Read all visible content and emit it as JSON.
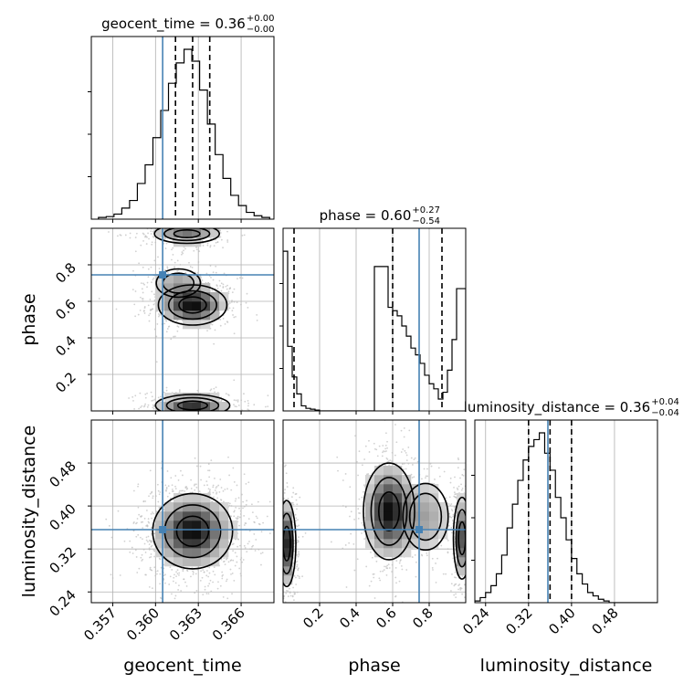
{
  "chart_data": {
    "type": "corner",
    "params": [
      "geocent_time",
      "phase",
      "luminosity_distance"
    ],
    "axis_labels": {
      "geocent_time": "geocent_time",
      "phase": "phase",
      "luminosity_distance": "luminosity_distance"
    },
    "ranges": {
      "geocent_time": [
        0.3555,
        0.3683
      ],
      "phase": [
        0.0,
        1.0
      ],
      "luminosity_distance": [
        0.22,
        0.56
      ]
    },
    "ticks": {
      "geocent_time": [
        0.357,
        0.36,
        0.363,
        0.366
      ],
      "phase": [
        0.2,
        0.4,
        0.6,
        0.8
      ],
      "luminosity_distance": [
        0.24,
        0.32,
        0.4,
        0.48
      ]
    },
    "tick_labels": {
      "geocent_time": [
        "0.357",
        "0.360",
        "0.363",
        "0.366"
      ],
      "phase": [
        "0.2",
        "0.4",
        "0.6",
        "0.8"
      ],
      "luminosity_distance": [
        "0.24",
        "0.32",
        "0.40",
        "0.48"
      ]
    },
    "titles": [
      {
        "param": "geocent_time",
        "main": "geocent_time = 0.36",
        "upper": "+0.00",
        "lower": "−0.00"
      },
      {
        "param": "phase",
        "main": "phase = 0.60",
        "upper": "+0.27",
        "lower": "−0.54"
      },
      {
        "param": "luminosity_distance",
        "main": "luminosity_distance = 0.36",
        "upper": "+0.04",
        "lower": "−0.04"
      }
    ],
    "truths": {
      "geocent_time": 0.3605,
      "phase": 0.745,
      "luminosity_distance": 0.356
    },
    "quantiles": {
      "geocent_time": [
        0.3614,
        0.3626,
        0.3638
      ],
      "phase": [
        0.06,
        0.6,
        0.87
      ],
      "luminosity_distance": [
        0.32,
        0.36,
        0.4
      ]
    },
    "histograms": {
      "geocent_time": {
        "edges_range": [
          0.356,
          0.368
        ],
        "counts": [
          0.01,
          0.015,
          0.03,
          0.065,
          0.11,
          0.21,
          0.32,
          0.48,
          0.64,
          0.8,
          0.92,
          1.0,
          0.93,
          0.76,
          0.56,
          0.38,
          0.24,
          0.14,
          0.08,
          0.04,
          0.02,
          0.01
        ]
      },
      "phase": {
        "edges_range": [
          0.0,
          1.0
        ],
        "counts": [
          0.94,
          0.38,
          0.2,
          0.1,
          0.03,
          0.015,
          0.01,
          0.005,
          0.0,
          0.0,
          0.0,
          0.0,
          0.0,
          0.0,
          0.0,
          0.0,
          0.0,
          0.0,
          0.0,
          0.0,
          0.85,
          0.85,
          0.85,
          0.61,
          0.59,
          0.56,
          0.5,
          0.44,
          0.37,
          0.33,
          0.28,
          0.21,
          0.16,
          0.13,
          0.07,
          0.11,
          0.24,
          0.42,
          0.72,
          0.72
        ]
      },
      "luminosity_distance": {
        "edges_range": [
          0.22,
          0.56
        ],
        "counts": [
          0.01,
          0.03,
          0.06,
          0.1,
          0.17,
          0.28,
          0.44,
          0.58,
          0.72,
          0.84,
          0.92,
          0.96,
          1.0,
          0.88,
          0.78,
          0.62,
          0.5,
          0.37,
          0.26,
          0.17,
          0.11,
          0.06,
          0.04,
          0.02,
          0.01,
          0.0,
          0.0,
          0.0,
          0.0,
          0.0,
          0.0,
          0.0,
          0.0,
          0.0
        ]
      }
    },
    "blobs_2d": {
      "phase_vs_geocent_time": [
        {
          "cx": 0.3626,
          "cy": 0.58,
          "sx": 0.0012,
          "sy": 0.055,
          "w": 1.0
        },
        {
          "cx": 0.3626,
          "cy": 0.03,
          "sx": 0.0013,
          "sy": 0.03,
          "w": 0.85
        },
        {
          "cx": 0.3622,
          "cy": 0.97,
          "sx": 0.0013,
          "sy": 0.03,
          "w": 0.55
        },
        {
          "cx": 0.3616,
          "cy": 0.7,
          "sx": 0.001,
          "sy": 0.05,
          "w": 0.35
        }
      ],
      "luminosity_distance_vs_geocent_time": [
        {
          "cx": 0.3626,
          "cy": 0.353,
          "sx": 0.0014,
          "sy": 0.035,
          "w": 1.0
        }
      ],
      "luminosity_distance_vs_phase": [
        {
          "cx": 0.58,
          "cy": 0.39,
          "sx": 0.07,
          "sy": 0.045,
          "w": 1.0
        },
        {
          "cx": 0.02,
          "cy": 0.33,
          "sx": 0.025,
          "sy": 0.04,
          "w": 0.9
        },
        {
          "cx": 0.98,
          "cy": 0.34,
          "sx": 0.025,
          "sy": 0.04,
          "w": 0.7
        },
        {
          "cx": 0.78,
          "cy": 0.38,
          "sx": 0.08,
          "sy": 0.04,
          "w": 0.35
        }
      ]
    },
    "grid": true,
    "colors": {
      "truth": "#4682b4",
      "hist": "#000000",
      "scatter": "#bdbdbd",
      "grid": "#b0b0b0"
    }
  }
}
